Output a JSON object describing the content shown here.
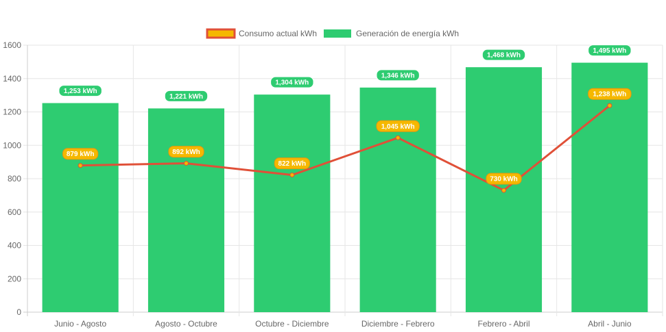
{
  "chart_data": {
    "type": "bar",
    "title": "",
    "xlabel": "",
    "ylabel": "",
    "ylim": [
      0,
      1600
    ],
    "yticks": [
      0,
      200,
      400,
      600,
      800,
      1000,
      1200,
      1400,
      1600
    ],
    "grid": true,
    "legend_position": "top",
    "categories": [
      "Junio - Agosto",
      "Agosto - Octubre",
      "Octubre - Diciembre",
      "Diciembre - Febrero",
      "Febrero - Abril",
      "Abril - Junio"
    ],
    "series": [
      {
        "name": "Consumo actual kWh",
        "type": "line",
        "values": [
          879,
          892,
          822,
          1045,
          730,
          1238
        ],
        "labels": [
          "879 kWh",
          "892 kWh",
          "822 kWh",
          "1,045 kWh",
          "730 kWh",
          "1,238 kWh"
        ],
        "color": "#e05038",
        "label_color": "#f5b800"
      },
      {
        "name": "Generación de energía kWh",
        "type": "bar",
        "values": [
          1253,
          1221,
          1304,
          1346,
          1468,
          1495
        ],
        "labels": [
          "1,253 kWh",
          "1,221 kWh",
          "1,304 kWh",
          "1,346 kWh",
          "1,468 kWh",
          "1,495 kWh"
        ],
        "color": "#2ecc71",
        "label_color": "#2ecc71"
      }
    ]
  }
}
